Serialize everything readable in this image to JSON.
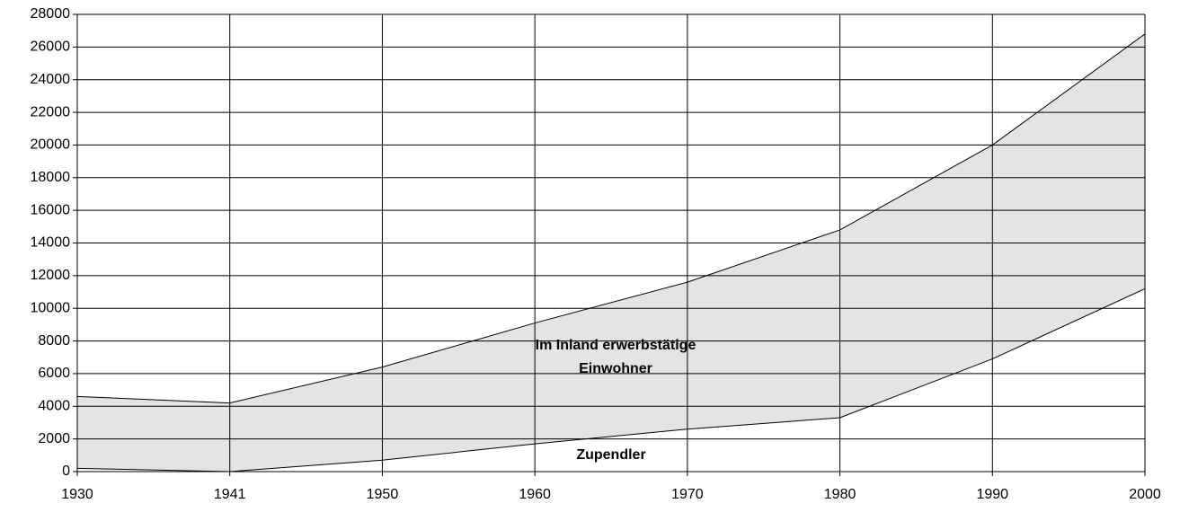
{
  "chart_data": {
    "type": "stacked_area",
    "categories": [
      "1930",
      "1941",
      "1950",
      "1960",
      "1970",
      "1980",
      "1990",
      "2000"
    ],
    "series": [
      {
        "name": "Zupendler",
        "color": "#ffffff",
        "values": [
          200,
          0,
          700,
          1700,
          2600,
          3300,
          6900,
          11200
        ]
      },
      {
        "name": "Im Inland erwerbstätige Einwohner",
        "color": "#e4e4e4",
        "values": [
          4400,
          4200,
          5700,
          7400,
          9000,
          11500,
          13100,
          15600
        ]
      }
    ],
    "ylim": [
      0,
      28000
    ],
    "yticks": [
      0,
      2000,
      4000,
      6000,
      8000,
      10000,
      12000,
      14000,
      16000,
      18000,
      20000,
      22000,
      24000,
      26000,
      28000
    ],
    "grid": true
  }
}
